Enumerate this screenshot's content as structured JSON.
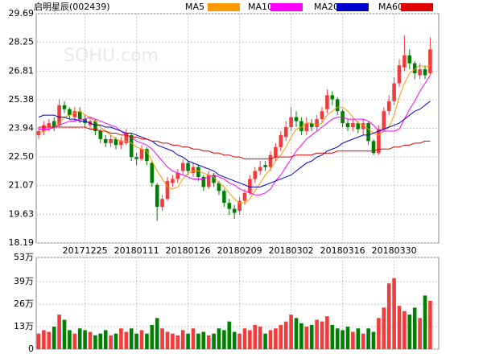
{
  "chart_data": {
    "type": "candlestick",
    "title": "启明星辰(002439)",
    "watermark": "SOHU.com",
    "categories": [
      null,
      null,
      null,
      null,
      null,
      null,
      null,
      null,
      null,
      "20171225",
      null,
      null,
      null,
      null,
      null,
      null,
      null,
      null,
      null,
      "20180111",
      null,
      null,
      null,
      null,
      null,
      null,
      null,
      null,
      null,
      "20180126",
      null,
      null,
      null,
      null,
      null,
      null,
      null,
      null,
      null,
      "20180209",
      null,
      null,
      null,
      null,
      null,
      null,
      null,
      null,
      null,
      "20180302",
      null,
      null,
      null,
      null,
      null,
      null,
      null,
      null,
      null,
      "20180316",
      null,
      null,
      null,
      null,
      null,
      null,
      null,
      null,
      null,
      "20180330",
      null,
      null,
      null,
      null,
      null,
      null,
      null
    ],
    "open": [
      23.6,
      23.8,
      24.0,
      24.3,
      24.1,
      25.1,
      24.9,
      24.5,
      24.8,
      24.4,
      24.1,
      24.3,
      23.8,
      23.4,
      23.2,
      23.4,
      23.1,
      23.2,
      23.6,
      22.5,
      22.4,
      22.9,
      22.2,
      21.1,
      20.0,
      20.4,
      21.2,
      21.4,
      21.8,
      22.2,
      21.7,
      22.0,
      21.5,
      21.0,
      21.6,
      21.2,
      20.8,
      20.2,
      19.9,
      19.8,
      20.3,
      20.7,
      21.4,
      21.8,
      22.1,
      22.0,
      22.5,
      23.0,
      23.5,
      24.0,
      24.5,
      24.3,
      23.8,
      24.2,
      24.0,
      24.4,
      24.9,
      25.6,
      25.4,
      24.8,
      24.2,
      24.0,
      24.2,
      23.9,
      24.2,
      23.3,
      22.7,
      23.9,
      24.8,
      25.3,
      26.2,
      27.0,
      27.6,
      27.2,
      26.6,
      26.9,
      26.7
    ],
    "high": [
      24.0,
      24.3,
      24.4,
      24.5,
      25.4,
      25.3,
      25.0,
      25.0,
      25.0,
      24.6,
      24.5,
      24.4,
      23.9,
      23.6,
      23.6,
      23.5,
      23.5,
      23.9,
      23.7,
      22.7,
      23.1,
      23.0,
      22.3,
      21.2,
      20.6,
      21.5,
      21.6,
      21.9,
      22.4,
      22.3,
      22.2,
      22.1,
      21.6,
      21.8,
      21.7,
      21.3,
      20.9,
      20.4,
      20.1,
      20.5,
      20.9,
      21.6,
      22.0,
      22.3,
      22.3,
      22.8,
      23.2,
      23.8,
      24.3,
      25.0,
      24.8,
      24.5,
      24.5,
      24.4,
      24.6,
      25.0,
      25.9,
      25.8,
      25.5,
      24.9,
      24.4,
      24.4,
      24.3,
      24.4,
      24.3,
      23.4,
      24.1,
      25.0,
      25.6,
      26.5,
      27.4,
      28.6,
      27.9,
      27.3,
      27.2,
      27.1,
      28.5
    ],
    "low": [
      23.4,
      23.6,
      23.8,
      23.8,
      24.0,
      24.7,
      24.4,
      24.3,
      24.2,
      24.0,
      23.9,
      23.6,
      23.2,
      23.0,
      23.0,
      22.9,
      22.9,
      23.1,
      22.3,
      22.1,
      22.3,
      22.1,
      21.0,
      19.3,
      19.8,
      20.3,
      21.0,
      21.2,
      21.6,
      21.6,
      21.5,
      21.3,
      20.8,
      20.9,
      21.0,
      20.6,
      20.0,
      19.6,
      19.4,
      19.6,
      20.1,
      20.6,
      21.2,
      21.6,
      21.8,
      21.8,
      22.3,
      22.8,
      23.3,
      23.8,
      24.0,
      23.6,
      23.6,
      23.8,
      23.8,
      24.2,
      24.7,
      25.1,
      24.6,
      24.0,
      23.8,
      23.8,
      23.7,
      23.6,
      23.1,
      22.6,
      22.6,
      23.8,
      24.6,
      25.1,
      26.0,
      26.8,
      26.9,
      26.4,
      26.4,
      26.4,
      26.6
    ],
    "close": [
      23.8,
      24.1,
      24.2,
      24.0,
      25.1,
      24.9,
      24.6,
      24.8,
      24.4,
      24.2,
      24.3,
      23.8,
      23.4,
      23.2,
      23.4,
      23.1,
      23.3,
      23.7,
      22.5,
      22.4,
      22.9,
      22.3,
      21.2,
      20.0,
      20.4,
      21.3,
      21.4,
      21.7,
      22.2,
      21.8,
      22.0,
      21.5,
      21.0,
      21.6,
      21.2,
      20.8,
      20.2,
      19.9,
      19.7,
      20.3,
      20.7,
      21.4,
      21.8,
      22.0,
      22.0,
      22.6,
      23.0,
      23.6,
      24.0,
      24.5,
      24.3,
      23.8,
      24.2,
      24.0,
      24.4,
      24.8,
      25.6,
      25.4,
      24.8,
      24.2,
      24.0,
      24.2,
      23.9,
      24.2,
      23.3,
      22.7,
      23.9,
      24.8,
      25.3,
      26.2,
      27.1,
      27.6,
      27.2,
      26.7,
      26.9,
      26.6,
      27.9
    ],
    "up_color": "#f03c3c",
    "down_color": "#008000",
    "series": [
      {
        "name": "MA5",
        "color": "#ff9900",
        "values": [
          23.7,
          23.8,
          23.9,
          24.0,
          24.2,
          24.5,
          24.6,
          24.7,
          24.8,
          24.6,
          24.5,
          24.3,
          24.0,
          23.8,
          23.6,
          23.4,
          23.3,
          23.3,
          23.2,
          23.0,
          22.9,
          22.8,
          22.3,
          21.8,
          21.4,
          21.0,
          20.9,
          21.0,
          21.4,
          21.7,
          21.8,
          21.8,
          21.7,
          21.6,
          21.5,
          21.2,
          21.0,
          20.7,
          20.4,
          20.2,
          20.2,
          20.4,
          20.8,
          21.2,
          21.6,
          21.9,
          22.3,
          22.6,
          23.0,
          23.5,
          23.9,
          24.0,
          24.2,
          24.2,
          24.1,
          24.2,
          24.6,
          24.8,
          25.0,
          25.0,
          24.8,
          24.5,
          24.2,
          24.1,
          23.9,
          23.7,
          23.6,
          23.8,
          24.0,
          24.6,
          25.5,
          26.2,
          26.7,
          26.9,
          27.1,
          27.0,
          27.1
        ]
      },
      {
        "name": "MA10",
        "color": "#ff00ff",
        "values": [
          23.9,
          23.9,
          23.9,
          24.0,
          24.1,
          24.2,
          24.3,
          24.3,
          24.4,
          24.4,
          24.5,
          24.4,
          24.3,
          24.2,
          24.1,
          24.0,
          23.8,
          23.6,
          23.5,
          23.3,
          23.2,
          23.1,
          22.9,
          22.6,
          22.3,
          22.0,
          21.8,
          21.7,
          21.6,
          21.5,
          21.4,
          21.4,
          21.4,
          21.5,
          21.6,
          21.5,
          21.4,
          21.2,
          21.1,
          20.9,
          20.8,
          20.7,
          20.6,
          20.6,
          20.7,
          20.9,
          21.3,
          21.6,
          22.0,
          22.4,
          22.8,
          23.1,
          23.4,
          23.6,
          23.8,
          24.0,
          24.2,
          24.4,
          24.5,
          24.5,
          24.4,
          24.4,
          24.4,
          24.4,
          24.3,
          24.1,
          23.8,
          23.8,
          23.8,
          23.8,
          23.9,
          24.4,
          24.9,
          25.3,
          25.8,
          26.2,
          26.6
        ]
      },
      {
        "name": "MA20",
        "color": "#0000cc",
        "values": [
          24.5,
          24.6,
          24.6,
          24.6,
          24.5,
          24.5,
          24.4,
          24.4,
          24.3,
          24.3,
          24.2,
          24.1,
          24.1,
          24.0,
          24.0,
          23.9,
          23.8,
          23.7,
          23.7,
          23.6,
          23.5,
          23.4,
          23.3,
          23.1,
          23.0,
          22.9,
          22.8,
          22.6,
          22.5,
          22.3,
          22.2,
          22.1,
          22.0,
          21.9,
          21.8,
          21.6,
          21.5,
          21.4,
          21.3,
          21.2,
          21.1,
          21.0,
          21.0,
          21.0,
          21.1,
          21.2,
          21.3,
          21.4,
          21.5,
          21.6,
          21.8,
          22.0,
          22.2,
          22.3,
          22.5,
          22.6,
          22.8,
          22.9,
          23.0,
          23.2,
          23.3,
          23.4,
          23.5,
          23.6,
          23.6,
          23.7,
          23.8,
          23.9,
          24.0,
          24.1,
          24.2,
          24.4,
          24.6,
          24.8,
          24.9,
          25.1,
          25.3
        ]
      },
      {
        "name": "MA60",
        "color": "#e00000",
        "values": [
          24.0,
          24.0,
          24.0,
          24.0,
          24.0,
          24.0,
          24.0,
          24.0,
          24.0,
          24.0,
          23.9,
          23.9,
          23.8,
          23.8,
          23.7,
          23.7,
          23.6,
          23.6,
          23.5,
          23.5,
          23.4,
          23.4,
          23.3,
          23.3,
          23.2,
          23.2,
          23.1,
          23.1,
          23.0,
          23.0,
          22.9,
          22.9,
          22.8,
          22.8,
          22.7,
          22.7,
          22.6,
          22.6,
          22.5,
          22.5,
          22.4,
          22.4,
          22.4,
          22.4,
          22.4,
          22.4,
          22.5,
          22.5,
          22.5,
          22.5,
          22.6,
          22.6,
          22.6,
          22.6,
          22.7,
          22.7,
          22.7,
          22.7,
          22.8,
          22.8,
          22.8,
          22.8,
          22.8,
          22.8,
          22.8,
          22.8,
          22.9,
          22.9,
          22.9,
          23.0,
          23.0,
          23.1,
          23.1,
          23.2,
          23.2,
          23.3,
          23.3
        ]
      }
    ],
    "ylim": [
      18.19,
      29.69
    ],
    "yticks": [
      29.69,
      28.25,
      26.81,
      25.38,
      23.94,
      {
        "value": 22.5,
        "label": "22.50"
      },
      21.07,
      19.63,
      18.19
    ],
    "grid": true,
    "volume": {
      "type": "bar",
      "values": [
        9,
        11,
        10,
        13,
        20,
        17,
        11,
        9,
        12,
        11,
        10,
        8,
        9,
        11,
        8,
        9,
        12,
        10,
        12,
        9,
        11,
        9,
        14,
        18,
        12,
        10,
        9,
        8,
        11,
        9,
        12,
        9,
        10,
        8,
        9,
        12,
        11,
        16,
        10,
        9,
        12,
        11,
        14,
        13,
        9,
        11,
        12,
        14,
        16,
        20,
        18,
        15,
        13,
        14,
        17,
        16,
        19,
        14,
        12,
        11,
        13,
        10,
        12,
        9,
        12,
        10,
        18,
        24,
        38,
        41,
        25,
        22,
        20,
        24,
        18,
        31,
        28
      ],
      "ylim": [
        0,
        53
      ],
      "yticks": [
        {
          "value": 53,
          "label": "53万"
        },
        {
          "value": 39,
          "label": "39万"
        },
        {
          "value": 26,
          "label": "26万"
        },
        {
          "value": 13,
          "label": "13万"
        },
        0
      ]
    }
  }
}
